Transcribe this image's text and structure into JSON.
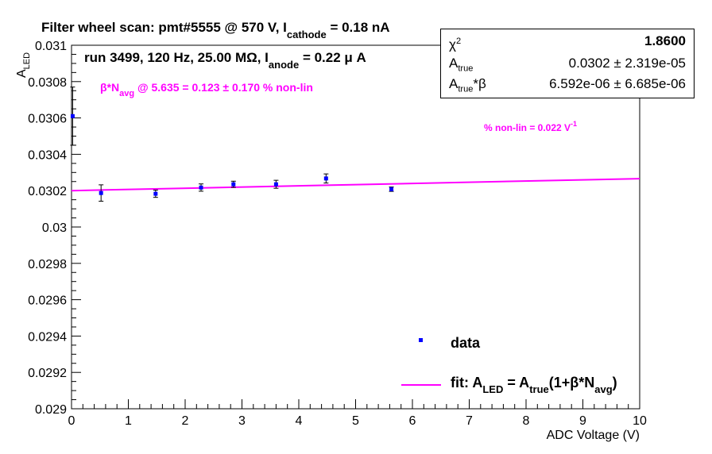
{
  "chart_data": {
    "type": "scatter",
    "title": "Filter wheel scan: pmt#5555 @   570 V, I",
    "title_sub": "cathode",
    "title_tail": " = 0.18 nA",
    "subtitle": "run 3499, 120 Hz, 25.00 MΩ, I",
    "subtitle_sub": "anode",
    "subtitle_tail": " = 0.22 μ A",
    "ylabel_main": "A",
    "ylabel_sub": "LED",
    "xlabel": "ADC Voltage (V)",
    "xlim": [
      0,
      10
    ],
    "ylim": [
      0.029,
      0.031
    ],
    "x_ticks": [
      0,
      1,
      2,
      3,
      4,
      5,
      6,
      7,
      8,
      9,
      10
    ],
    "x_tick_labels": [
      "0",
      "1",
      "2",
      "3",
      "4",
      "5",
      "6",
      "7",
      "8",
      "9",
      "10"
    ],
    "y_ticks": [
      0.029,
      0.0292,
      0.0294,
      0.0296,
      0.0298,
      0.03,
      0.0302,
      0.0304,
      0.0306,
      0.0308,
      0.031
    ],
    "y_tick_labels": [
      "0.029",
      "0.0292",
      "0.0294",
      "0.0296",
      "0.0298",
      "0.03",
      "0.0302",
      "0.0304",
      "0.0306",
      "0.0308",
      "0.031"
    ],
    "grid": false,
    "series": [
      {
        "name": "data",
        "kind": "points",
        "color": "#0000ff",
        "x": [
          0.02,
          0.52,
          1.48,
          2.28,
          2.85,
          3.6,
          4.48,
          5.63
        ],
        "y": [
          0.03061,
          0.030187,
          0.030183,
          0.030217,
          0.030235,
          0.030235,
          0.030267,
          0.030208
        ],
        "yerr": [
          0.00016,
          4.5e-05,
          2e-05,
          2e-05,
          1.7e-05,
          2.2e-05,
          2.5e-05,
          1.2e-05
        ]
      },
      {
        "name": "fit",
        "kind": "line",
        "color": "#ff00ff",
        "x": [
          0,
          10
        ],
        "y": [
          0.0302,
          0.030266
        ]
      }
    ],
    "annotations": {
      "nonlin_avg_pre": "β*N",
      "nonlin_avg_sub": "avg",
      "nonlin_avg_post": " @ 5.635 = 0.123 ± 0.170 % non-lin",
      "nonlin_slope_pre": "% non-lin = 0.022 V",
      "nonlin_slope_sup": "-1"
    },
    "legend": {
      "position": "bottom-right",
      "data_label": "data",
      "fit_pre": "fit: A",
      "fit_sub1": "LED",
      "fit_mid": " = A",
      "fit_sub2": "true",
      "fit_post": "(1+β*N",
      "fit_sub3": "avg",
      "fit_end": ")"
    },
    "stats": {
      "chi2_label": "χ",
      "chi2_sup": "2",
      "chi2_value": "1.8600",
      "atrue_label": "A",
      "atrue_sub": "true",
      "atrue_value": "0.0302 ± 2.319e-05",
      "atb_label": "A",
      "atb_sub": "true",
      "atb_suffix": "*β",
      "atb_value": "6.592e-06 ± 6.685e-06"
    }
  }
}
